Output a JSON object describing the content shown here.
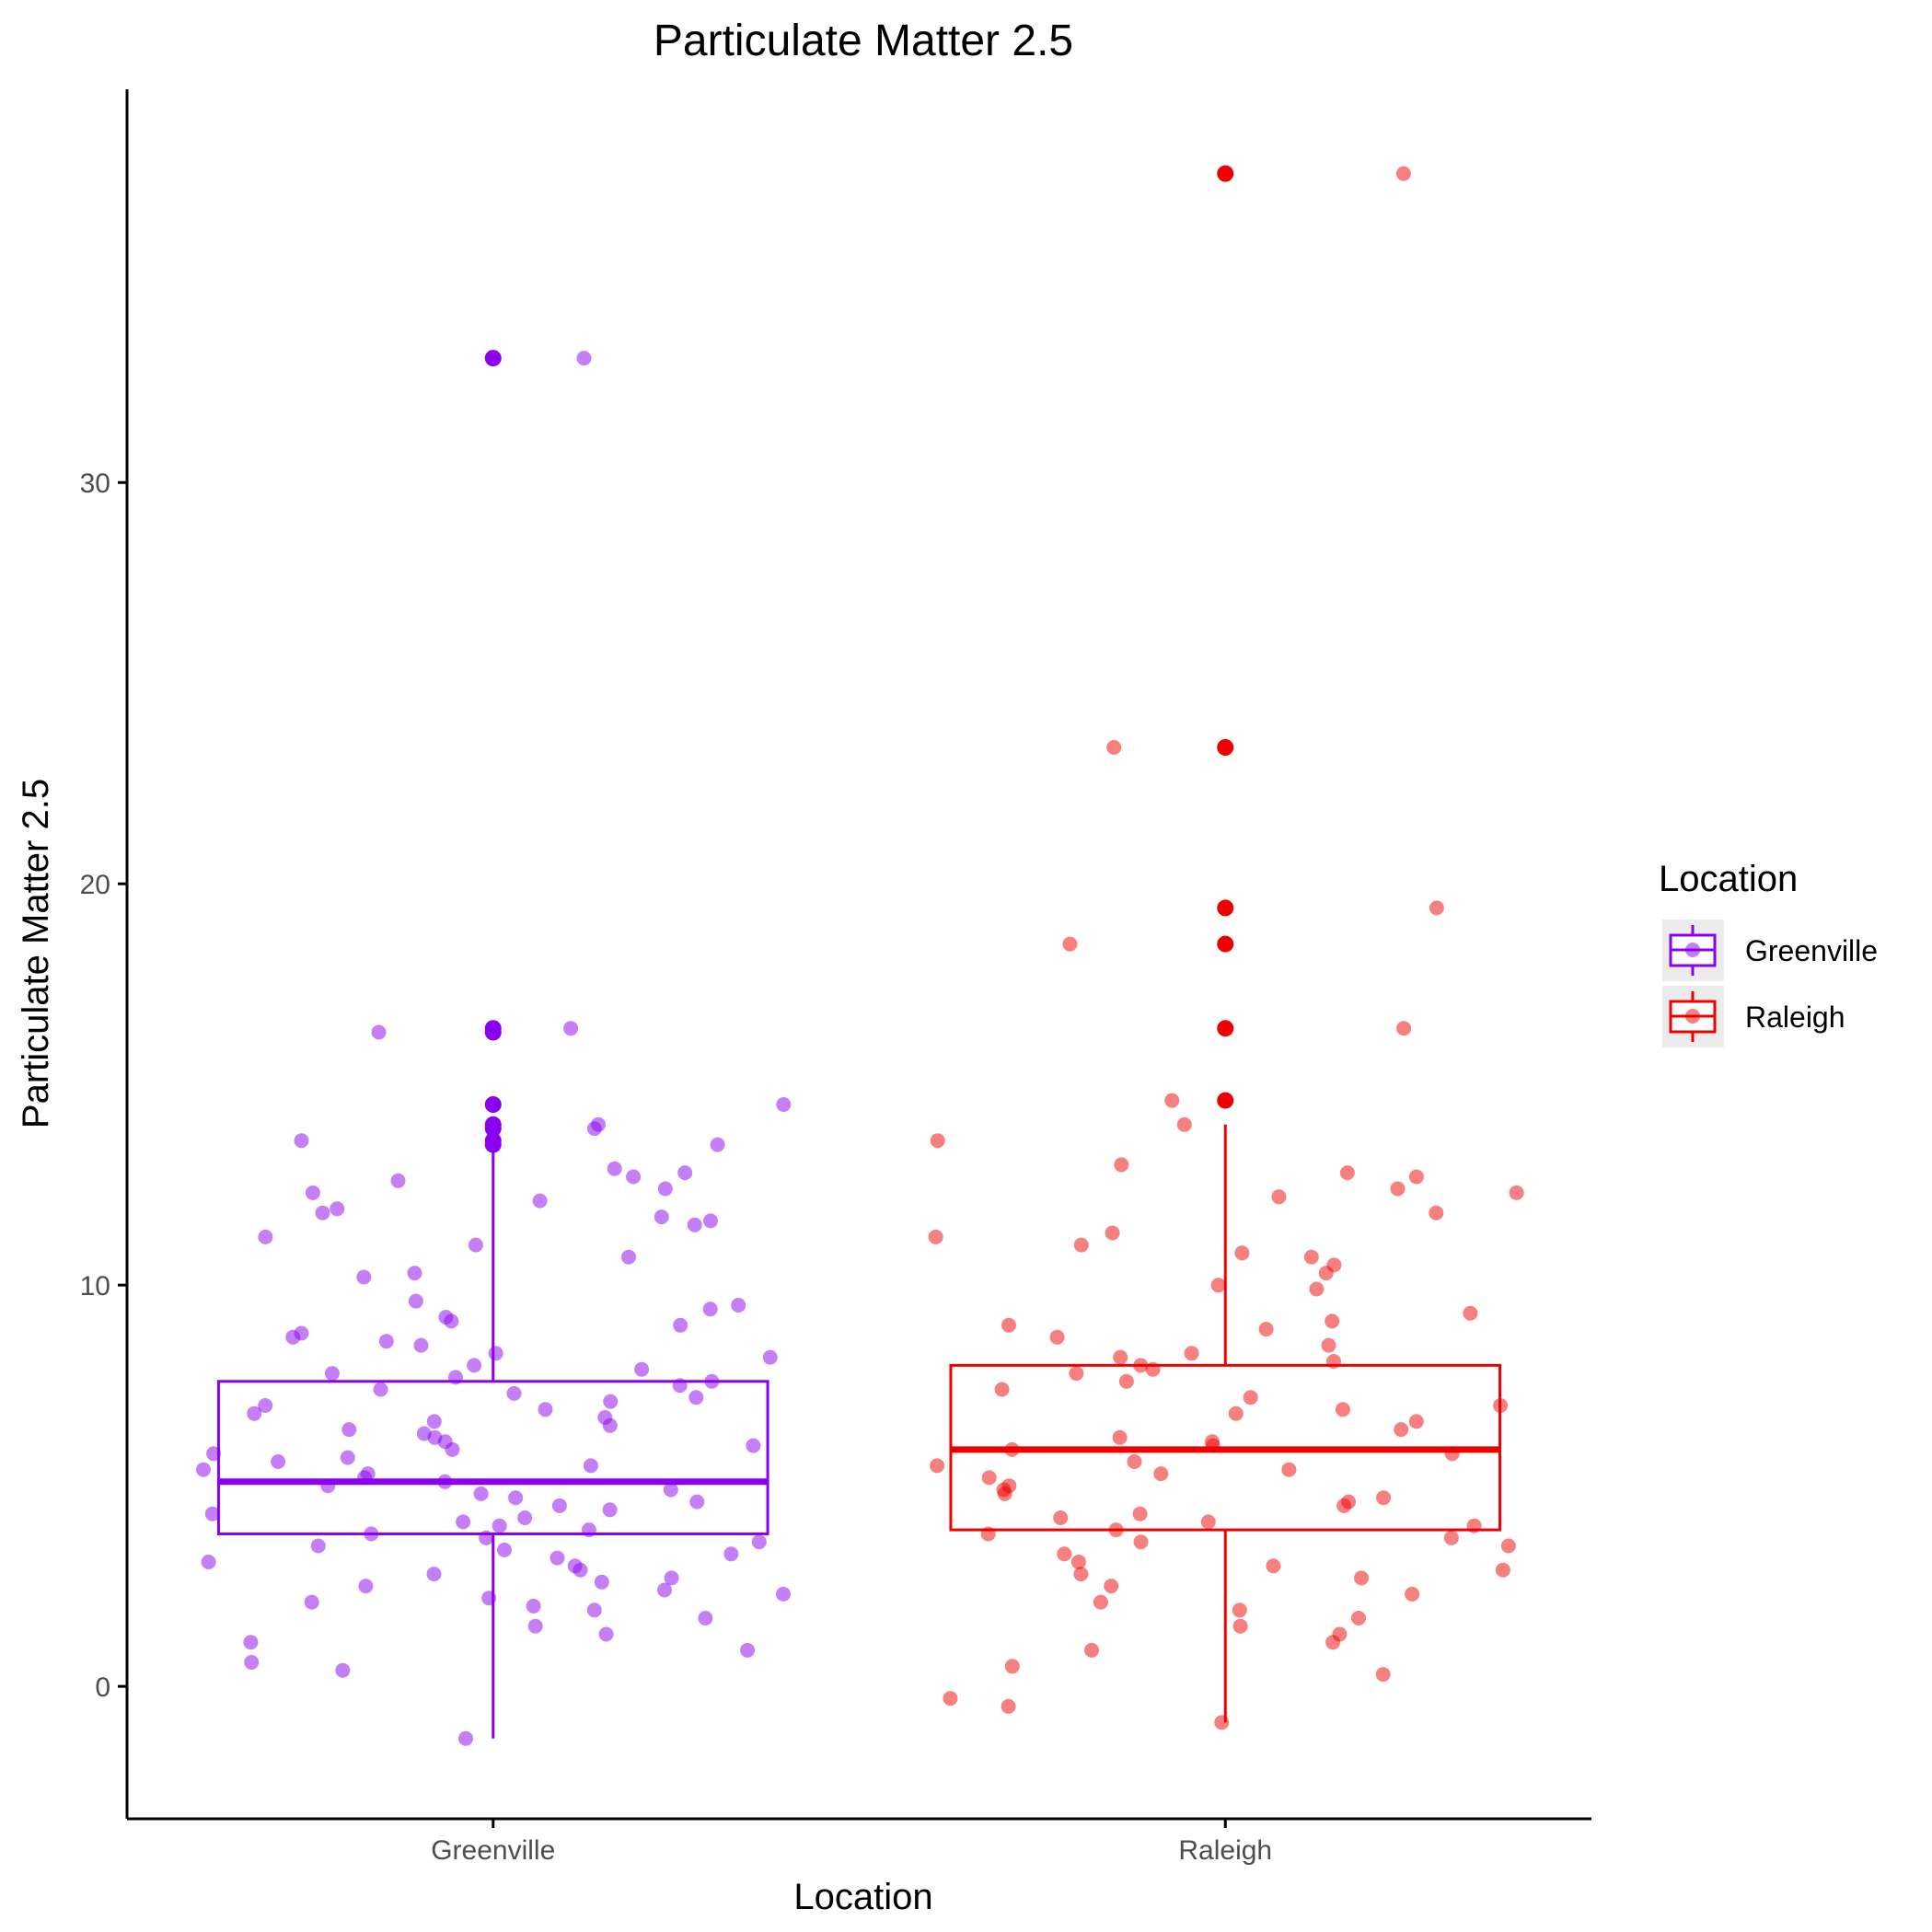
{
  "chart_data": {
    "type": "box",
    "title": "Particulate Matter 2.5",
    "xlabel": "Location",
    "ylabel": "Particulate Matter 2.5",
    "categories": [
      "Greenville",
      "Raleigh"
    ],
    "ylim": [
      -3.3,
      39.8
    ],
    "yticks": [
      0,
      10,
      20,
      30
    ],
    "grid": false,
    "legend": {
      "title": "Location",
      "position": "right",
      "entries": [
        "Greenville",
        "Raleigh"
      ]
    },
    "colors": {
      "Greenville": "#8B00EE",
      "Raleigh": "#EE0000"
    },
    "series": [
      {
        "name": "Greenville",
        "box": {
          "lower_whisker": -1.3,
          "q1": 3.8,
          "median": 5.1,
          "q3": 7.6,
          "upper_whisker": 13.3
        },
        "outliers": [
          13.5,
          13.6,
          13.9,
          14.0,
          14.5,
          16.3,
          16.4,
          33.1
        ],
        "points": [
          33.1,
          16.3,
          16.4,
          14.5,
          14.0,
          13.9,
          13.6,
          13.5,
          12.9,
          12.8,
          12.7,
          12.6,
          12.4,
          12.3,
          12.1,
          11.9,
          11.8,
          11.7,
          11.6,
          11.5,
          11.2,
          11.0,
          10.7,
          10.3,
          10.2,
          9.6,
          9.5,
          9.4,
          9.2,
          9.1,
          9.0,
          8.8,
          8.7,
          8.6,
          8.5,
          8.3,
          8.2,
          8.0,
          7.9,
          7.8,
          7.7,
          7.6,
          7.5,
          7.4,
          7.3,
          7.2,
          7.1,
          7.0,
          6.9,
          6.8,
          6.7,
          6.6,
          6.5,
          6.4,
          6.3,
          6.2,
          6.1,
          6.0,
          5.9,
          5.8,
          5.7,
          5.6,
          5.5,
          5.4,
          5.3,
          5.2,
          5.1,
          5.0,
          4.9,
          4.8,
          4.7,
          4.6,
          4.5,
          4.4,
          4.3,
          4.2,
          4.1,
          4.0,
          3.9,
          3.8,
          3.7,
          3.6,
          3.5,
          3.4,
          3.3,
          3.2,
          3.1,
          3.0,
          2.9,
          2.8,
          2.7,
          2.6,
          2.5,
          2.4,
          2.3,
          2.2,
          2.1,
          2.0,
          1.9,
          1.7,
          1.5,
          1.3,
          1.1,
          0.9,
          0.6,
          0.4,
          -1.3
        ]
      },
      {
        "name": "Raleigh",
        "box": {
          "lower_whisker": -0.9,
          "q1": 3.9,
          "median": 5.9,
          "q3": 8.0,
          "upper_whisker": 14.0
        },
        "outliers": [
          14.6,
          16.4,
          18.5,
          19.4,
          23.4,
          37.7
        ],
        "points": [
          37.7,
          23.4,
          19.4,
          18.5,
          16.4,
          14.6,
          14.0,
          13.6,
          13.0,
          12.8,
          12.7,
          12.4,
          12.3,
          12.2,
          11.8,
          11.3,
          11.2,
          11.0,
          10.8,
          10.7,
          10.5,
          10.3,
          10.0,
          9.9,
          9.3,
          9.1,
          9.0,
          8.9,
          8.7,
          8.5,
          8.3,
          8.2,
          8.1,
          8.0,
          7.9,
          7.8,
          7.6,
          7.4,
          7.2,
          7.0,
          6.9,
          6.8,
          6.6,
          6.4,
          6.2,
          6.1,
          6.0,
          5.9,
          5.8,
          5.6,
          5.5,
          5.4,
          5.3,
          5.2,
          5.0,
          4.9,
          4.8,
          4.7,
          4.6,
          4.5,
          4.3,
          4.2,
          4.1,
          4.0,
          3.9,
          3.8,
          3.7,
          3.6,
          3.5,
          3.3,
          3.1,
          3.0,
          2.9,
          2.8,
          2.7,
          2.5,
          2.3,
          2.1,
          1.9,
          1.7,
          1.5,
          1.3,
          1.1,
          0.9,
          0.5,
          0.3,
          -0.3,
          -0.5,
          -0.9
        ]
      }
    ]
  }
}
